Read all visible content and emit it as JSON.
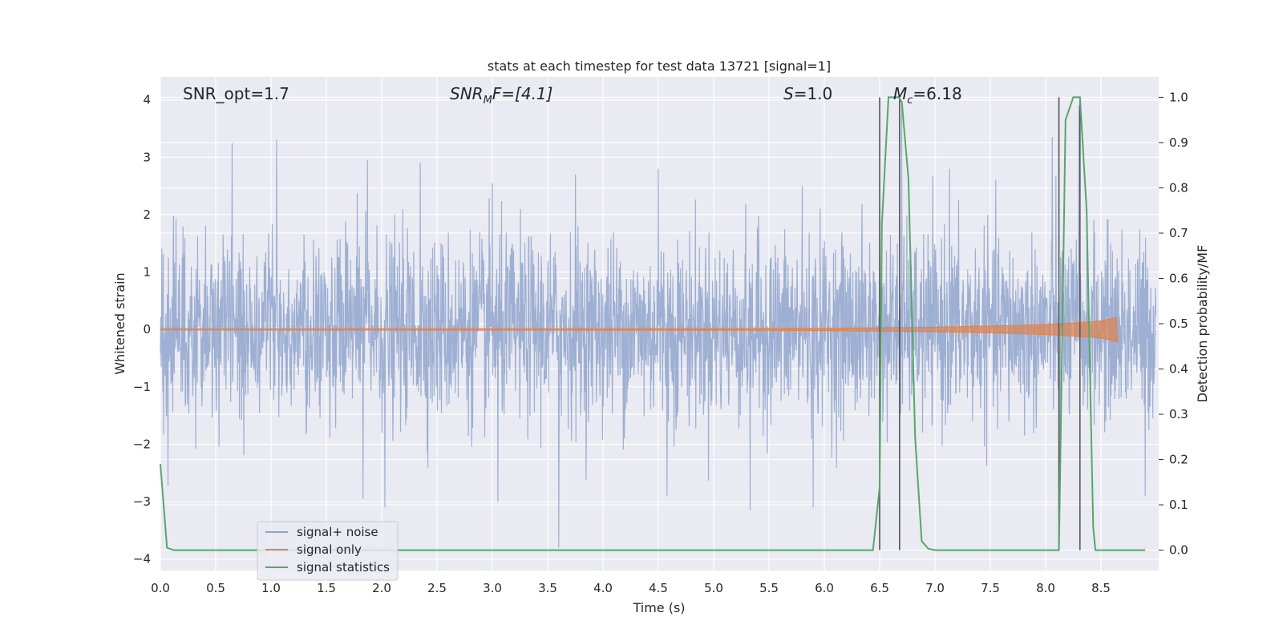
{
  "chart_data": {
    "type": "line",
    "title": "stats at each timestep for test data 13721 [signal=1]",
    "xlabel": "Time (s)",
    "ylabel_left": "Whitened strain",
    "ylabel_right": "Detection probability/MF",
    "xlim": [
      0.0,
      9.0
    ],
    "ylim_left": [
      -4.2,
      4.4
    ],
    "ylim_right": [
      -0.045,
      1.045
    ],
    "x_ticks": [
      "0.0",
      "0.5",
      "1.0",
      "1.5",
      "2.0",
      "2.5",
      "3.0",
      "3.5",
      "4.0",
      "4.5",
      "5.0",
      "5.5",
      "6.0",
      "6.5",
      "7.0",
      "7.5",
      "8.0",
      "8.5"
    ],
    "y_ticks_left": [
      "4",
      "3",
      "2",
      "1",
      "0",
      "−1",
      "−2",
      "−3",
      "−4"
    ],
    "y_ticks_right": [
      "1.0",
      "0.9",
      "0.8",
      "0.7",
      "0.6",
      "0.5",
      "0.4",
      "0.3",
      "0.2",
      "0.1",
      "0.0"
    ],
    "grid": true,
    "annotations": {
      "snr_opt": "SNR_opt=1.7",
      "snr_mf_base": "SNR",
      "snr_mf_sub": "M",
      "snr_mf_rest": "F=[4.1]",
      "s_italic": "S",
      "s_rest": "=1.0",
      "mc_italic": "M",
      "mc_sub": "c",
      "mc_rest": "=6.18"
    },
    "legend_position": "lower-left",
    "series": [
      {
        "name": "signal+ noise",
        "axis": "left",
        "color": "#8fa4cc",
        "description_values": {
          "noise_std": 0.8,
          "spike_peaks": [
            [
              0.65,
              3.25
            ],
            [
              1.05,
              3.3
            ],
            [
              1.87,
              2.95
            ],
            [
              2.35,
              2.9
            ],
            [
              3.0,
              2.55
            ],
            [
              3.75,
              2.7
            ],
            [
              4.5,
              2.8
            ],
            [
              5.8,
              2.5
            ],
            [
              6.7,
              3.9
            ],
            [
              7.13,
              2.8
            ],
            [
              8.06,
              3.35
            ],
            [
              8.3,
              3.9
            ],
            [
              3.6,
              -3.8
            ],
            [
              3.05,
              -3.0
            ],
            [
              2.03,
              -3.1
            ],
            [
              1.83,
              -2.95
            ],
            [
              5.33,
              -3.15
            ],
            [
              5.9,
              -3.1
            ],
            [
              4.58,
              -2.9
            ],
            [
              8.13,
              -2.85
            ],
            [
              8.9,
              -2.9
            ]
          ]
        }
      },
      {
        "name": "signal only",
        "axis": "left",
        "color": "#dd8452",
        "envelope": {
          "t": [
            0.0,
            5.0,
            6.0,
            7.0,
            7.5,
            8.0,
            8.3,
            8.5,
            8.62,
            8.65
          ],
          "amp": [
            0.01,
            0.015,
            0.02,
            0.04,
            0.06,
            0.09,
            0.12,
            0.15,
            0.2,
            0.22
          ]
        }
      },
      {
        "name": "signal statistics",
        "axis": "right",
        "color": "#55a868",
        "x": [
          0.0,
          0.06,
          0.12,
          6.44,
          6.5,
          6.52,
          6.58,
          6.67,
          6.7,
          6.76,
          6.82,
          6.88,
          6.94,
          7.0,
          8.1,
          8.12,
          8.18,
          8.25,
          8.31,
          8.37,
          8.43,
          8.45,
          8.9
        ],
        "y": [
          0.19,
          0.005,
          0.0,
          0.0,
          0.14,
          0.72,
          1.0,
          1.0,
          0.99,
          0.82,
          0.25,
          0.02,
          0.003,
          0.0,
          0.0,
          0.0,
          0.95,
          1.0,
          1.0,
          0.75,
          0.05,
          0.0,
          0.0
        ]
      }
    ],
    "vertical_markers": [
      6.5,
      6.68,
      8.12,
      8.31
    ]
  }
}
